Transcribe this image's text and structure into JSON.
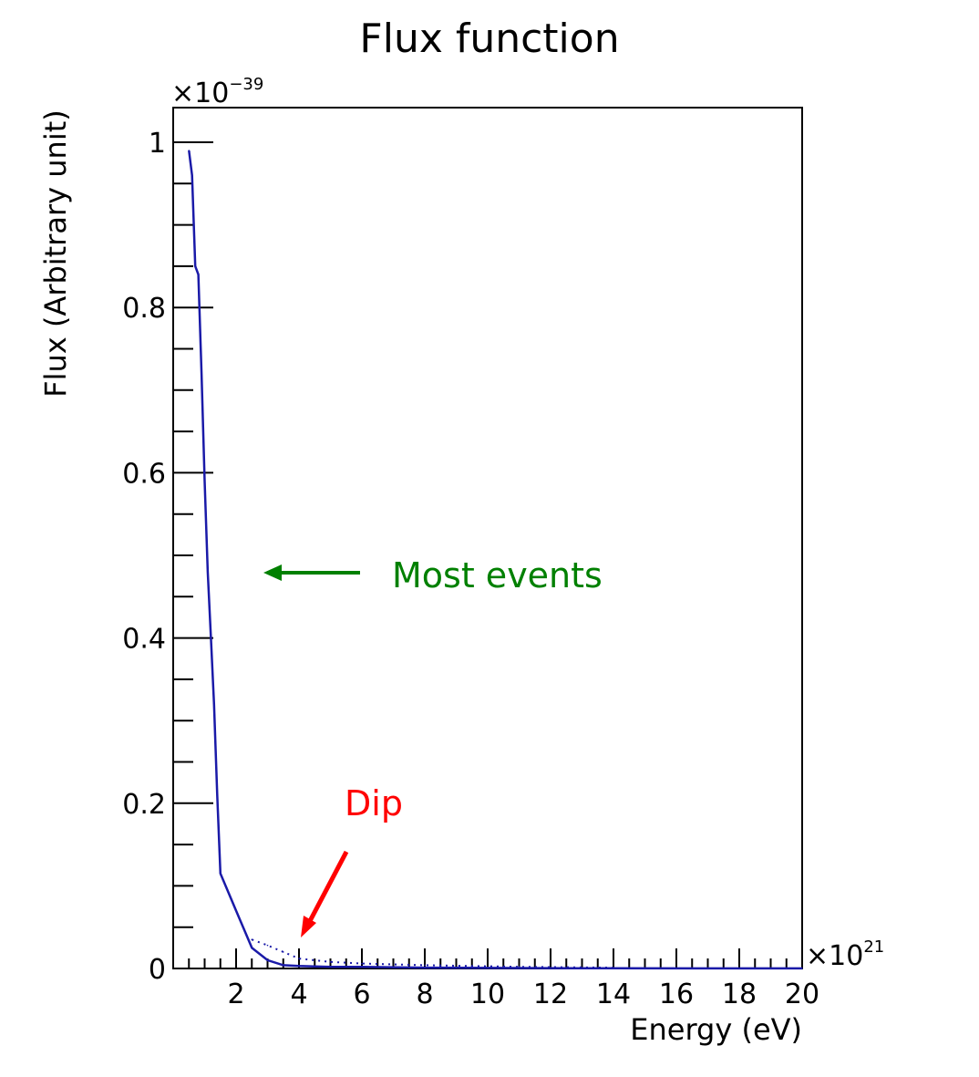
{
  "chart_data": {
    "type": "line",
    "title": "Flux function",
    "xlabel": "Energy (eV)",
    "ylabel": "Flux (Arbitrary unit)",
    "x_multiplier": "×10",
    "x_exponent": "21",
    "y_multiplier": "×10",
    "y_exponent": "−39",
    "xlim": [
      0,
      20
    ],
    "ylim": [
      0,
      1.05
    ],
    "x_ticks": [
      2,
      4,
      6,
      8,
      10,
      12,
      14,
      16,
      18,
      20
    ],
    "x_tick_labels": [
      "2",
      "4",
      "6",
      "8",
      "10",
      "12",
      "14",
      "16",
      "18",
      "20"
    ],
    "y_ticks": [
      0,
      0.2,
      0.4,
      0.6,
      0.8,
      1
    ],
    "y_tick_labels": [
      "0",
      "0.2",
      "0.4",
      "0.6",
      "0.8",
      "1"
    ],
    "grid": false,
    "series": [
      {
        "style": "solid",
        "color": "#1a1aa8",
        "x": [
          0.5,
          0.6,
          0.7,
          0.8,
          0.9,
          1.0,
          1.1,
          1.2,
          1.3,
          1.4,
          1.5,
          2.0,
          2.5,
          3.0,
          3.5,
          4.0,
          5.0,
          6.0,
          8.0,
          11.0,
          14.0,
          20.0
        ],
        "y": [
          0.99,
          0.96,
          0.85,
          0.84,
          0.72,
          0.59,
          0.48,
          0.4,
          0.32,
          0.21,
          0.115,
          0.07,
          0.025,
          0.01,
          0.004,
          0.003,
          0.002,
          0.002,
          0.001,
          0.0005,
          0.0002,
          0.0001
        ]
      },
      {
        "style": "dotted",
        "color": "#1a1aa8",
        "x": [
          2.5,
          3.0,
          3.5,
          4.0,
          5.0,
          6.0,
          8.0,
          11.0,
          14.0
        ],
        "y": [
          0.035,
          0.028,
          0.02,
          0.012,
          0.008,
          0.006,
          0.004,
          0.002,
          0.001
        ]
      }
    ],
    "annotations": [
      {
        "id": "most-events",
        "text": "Most events",
        "color": "#008000"
      },
      {
        "id": "dip",
        "text": "Dip",
        "color": "#ff0000"
      }
    ]
  }
}
